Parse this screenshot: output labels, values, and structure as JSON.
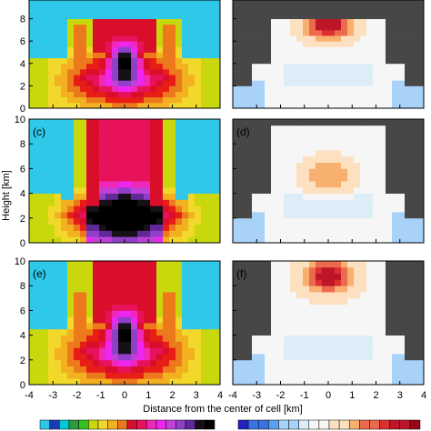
{
  "chart_data": {
    "type": "heatmap",
    "xlabel": "Distance from the center of cell [km]",
    "ylabel": "Height [km]",
    "xlim": [
      -4,
      4
    ],
    "ylim": [
      0,
      10
    ],
    "x_ticks": [
      "-4",
      "-3",
      "-2",
      "-1",
      "0",
      "1",
      "2",
      "3",
      "4"
    ],
    "y_ticks": [
      "0",
      "2",
      "4",
      "6",
      "8",
      "10"
    ],
    "grid": false,
    "missing_color": "#474747",
    "left_colormap": [
      "#30c8e8",
      "#1a3cb4",
      "#00c8d0",
      "#2e9b3a",
      "#34c020",
      "#c8d80c",
      "#f2d82a",
      "#f3b020",
      "#ec7a1c",
      "#e81e16",
      "#d80e2a",
      "#e8125c",
      "#f028b8",
      "#ee26f0",
      "#c040d8",
      "#9040c8",
      "#602898",
      "#181018",
      "#000000"
    ],
    "right_colormap": [
      "#2222c0",
      "#3a70e0",
      "#5aa0f0",
      "#a8d2f8",
      "#dcedf8",
      "#f6f6f6",
      "#fce0c0",
      "#f8b070",
      "#ec6a4c",
      "#dc3030",
      "#bc1628",
      "#960818"
    ],
    "colorbar_segments": 18,
    "panels": [
      {
        "label": "",
        "field": "left",
        "profile": "tall-narrow",
        "core": 4.5,
        "top": 8
      },
      {
        "label": "",
        "field": "right",
        "profile": "anomaly",
        "peak": 7.5,
        "top": 8.2
      },
      {
        "label": "(c)",
        "field": "left",
        "profile": "wide",
        "core": 0,
        "top": 10
      },
      {
        "label": "(d)",
        "field": "right",
        "profile": "anomaly-weak",
        "peak": 5.5,
        "top": 9.5
      },
      {
        "label": "(e)",
        "field": "left",
        "profile": "tall-narrow",
        "core": 4.5,
        "top": 10
      },
      {
        "label": "(f)",
        "field": "right",
        "profile": "anomaly",
        "peak": 8.8,
        "top": 10
      }
    ]
  }
}
